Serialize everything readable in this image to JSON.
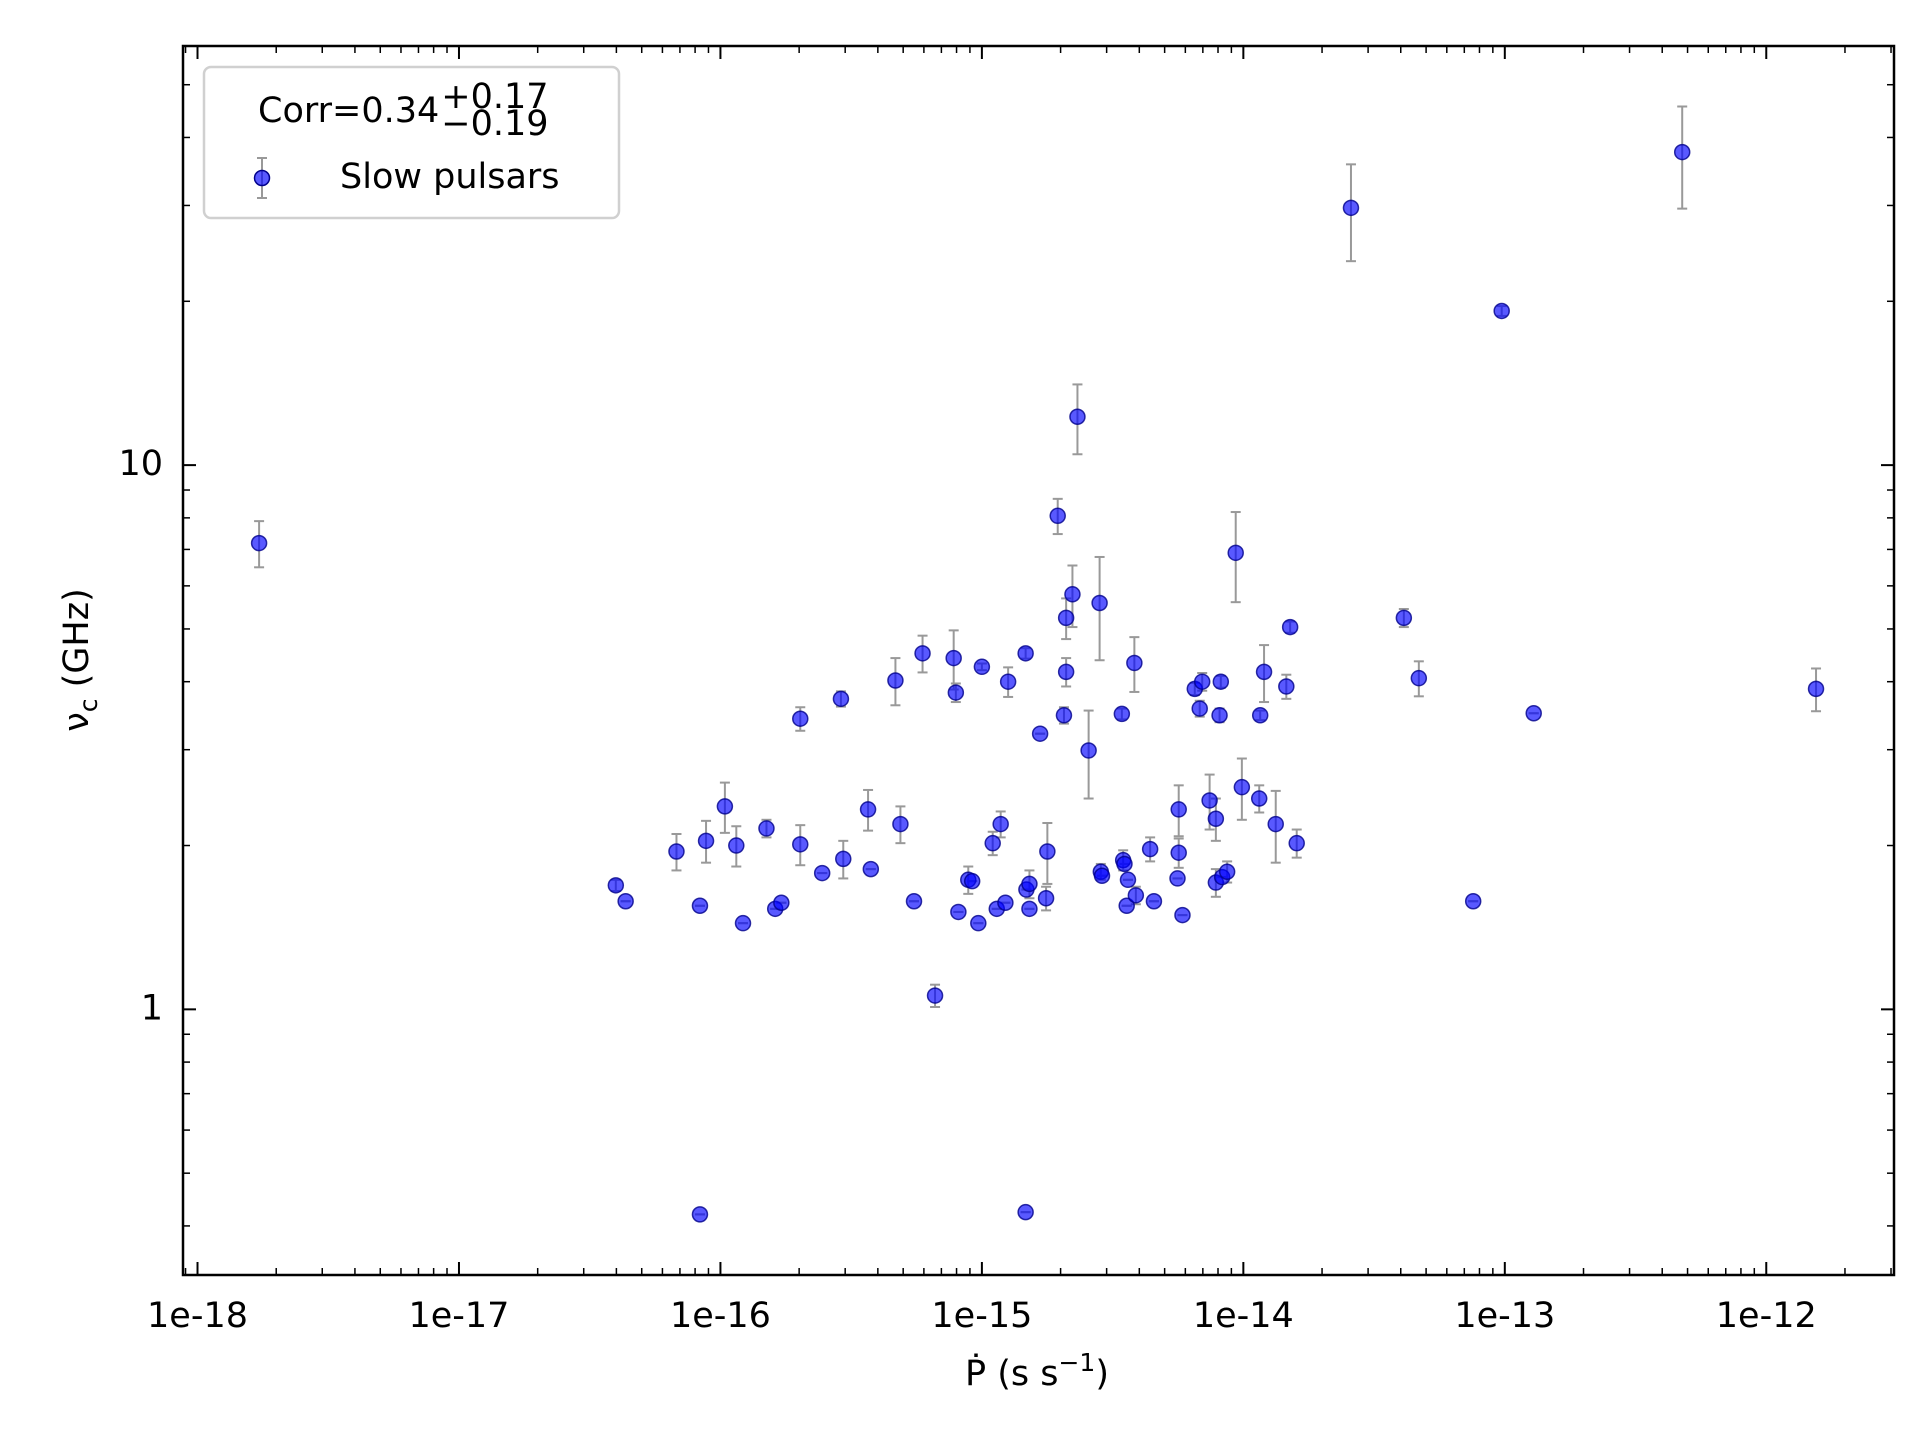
{
  "chart_data": {
    "type": "scatter",
    "x_label": {
      "main": "Ṗ (s s",
      "sup": "−1",
      "end": ")"
    },
    "y_label": {
      "main": "ν",
      "sub": "c",
      "end": " (GHz)"
    },
    "legend_title": {
      "main": "Corr=0.34",
      "upper": "+0.17",
      "lower": "−0.19"
    },
    "legend": "upper left",
    "xscale": "log",
    "yscale": "log",
    "xlim": [
      8.8e-19,
      3.08e-12
    ],
    "ylim": [
      0.325,
      58.9
    ],
    "xticks": [
      {
        "value": 1e-18,
        "label": "1e-18"
      },
      {
        "value": 1e-17,
        "label": "1e-17"
      },
      {
        "value": 1e-16,
        "label": "1e-16"
      },
      {
        "value": 1e-15,
        "label": "1e-15"
      },
      {
        "value": 1e-14,
        "label": "1e-14"
      },
      {
        "value": 1e-13,
        "label": "1e-13"
      },
      {
        "value": 1e-12,
        "label": "1e-12"
      }
    ],
    "yticks": [
      1,
      10
    ],
    "series": [
      {
        "name": "Slow pulsars",
        "color": "#0000ff",
        "error_color": "#999999",
        "x": [
          1.72e-18,
          3.98e-17,
          4.34e-17,
          6.79e-17,
          8.35e-17,
          8.35e-17,
          8.81e-17,
          1.04e-16,
          1.15e-16,
          1.22e-16,
          1.5e-16,
          1.62e-16,
          1.71e-16,
          2.02e-16,
          2.02e-16,
          2.45e-16,
          2.89e-16,
          2.95e-16,
          3.67e-16,
          3.76e-16,
          4.67e-16,
          4.88e-16,
          5.5e-16,
          5.93e-16,
          6.62e-16,
          7.8e-16,
          7.95e-16,
          8.13e-16,
          8.87e-16,
          9.18e-16,
          9.69e-16,
          1e-15,
          1.1e-15,
          1.14e-15,
          1.18e-15,
          1.23e-15,
          1.26e-15,
          1.47e-15,
          1.47e-15,
          1.48e-15,
          1.52e-15,
          1.52e-15,
          1.67e-15,
          1.76e-15,
          1.78e-15,
          1.95e-15,
          2.06e-15,
          2.1e-15,
          2.1e-15,
          2.22e-15,
          2.32e-15,
          2.56e-15,
          2.82e-15,
          2.85e-15,
          2.88e-15,
          3.43e-15,
          3.47e-15,
          3.51e-15,
          3.62e-15,
          3.58e-15,
          3.83e-15,
          3.88e-15,
          4.4e-15,
          4.55e-15,
          5.66e-15,
          5.66e-15,
          5.6e-15,
          5.85e-15,
          6.52e-15,
          6.81e-15,
          6.96e-15,
          7.43e-15,
          7.85e-15,
          7.85e-15,
          8.11e-15,
          8.2e-15,
          8.3e-15,
          8.67e-15,
          9.35e-15,
          9.87e-15,
          1.15e-14,
          1.16e-14,
          1.2e-14,
          1.33e-14,
          1.46e-14,
          1.51e-14,
          1.6e-14,
          2.58e-14,
          4.11e-14,
          4.69e-14,
          7.57e-14,
          9.73e-14,
          1.29e-13,
          4.77e-13,
          1.55e-12
        ],
        "y": [
          7.19,
          1.69,
          1.58,
          1.95,
          0.42,
          1.55,
          2.04,
          2.36,
          2.0,
          1.44,
          2.15,
          1.53,
          1.57,
          3.42,
          2.01,
          1.78,
          3.72,
          1.89,
          2.33,
          1.81,
          4.02,
          2.19,
          1.58,
          4.51,
          1.06,
          4.42,
          3.82,
          1.51,
          1.73,
          1.72,
          1.44,
          4.26,
          2.02,
          1.53,
          2.19,
          1.57,
          4.0,
          4.51,
          0.424,
          1.66,
          1.7,
          1.53,
          3.21,
          1.6,
          1.95,
          8.07,
          3.47,
          4.17,
          5.24,
          5.79,
          12.27,
          2.99,
          5.58,
          1.79,
          1.76,
          3.49,
          1.88,
          1.85,
          1.73,
          1.55,
          4.33,
          1.62,
          1.97,
          1.58,
          2.33,
          1.94,
          1.74,
          1.49,
          3.88,
          3.57,
          4.0,
          2.42,
          2.24,
          1.71,
          3.47,
          4.0,
          1.75,
          1.79,
          6.9,
          2.56,
          2.44,
          3.47,
          4.17,
          2.19,
          3.92,
          5.04,
          2.02,
          29.7,
          5.24,
          4.06,
          1.58,
          19.2,
          3.5,
          37.6,
          3.88
        ],
        "errors": [
          0.7,
          0.04,
          0,
          0.15,
          0,
          0,
          0.18,
          0.25,
          0.17,
          0,
          0.08,
          0,
          0,
          0.17,
          0.17,
          0,
          0.12,
          0.15,
          0.2,
          0,
          0.4,
          0.17,
          0,
          0.35,
          0.05,
          0.55,
          0.15,
          0,
          0.1,
          0,
          0,
          0.06,
          0.1,
          0,
          0.12,
          0,
          0.25,
          0.1,
          0,
          0,
          0.1,
          0,
          0,
          0.08,
          0.25,
          0.6,
          0.12,
          0.25,
          0.45,
          0.75,
          1.8,
          0.55,
          1.2,
          0.06,
          0,
          0.08,
          0.08,
          0,
          0,
          0,
          0.5,
          0.06,
          0.1,
          0,
          0.25,
          0.12,
          0,
          0,
          0.1,
          0.12,
          0.15,
          0.28,
          0.2,
          0.1,
          0.1,
          0.1,
          0,
          0.08,
          1.3,
          0.33,
          0.14,
          0.07,
          0.5,
          0.33,
          0.2,
          0.12,
          0.12,
          6.0,
          0.2,
          0.3,
          0,
          0.4,
          0,
          8.0,
          0.35
        ]
      }
    ]
  }
}
